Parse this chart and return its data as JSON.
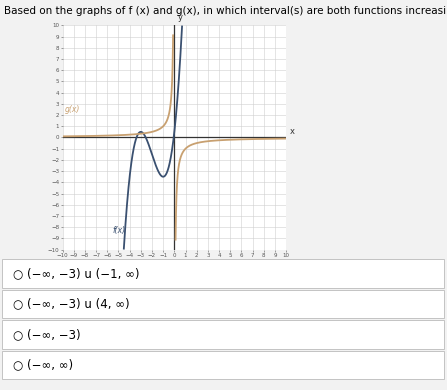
{
  "title": "Based on the graphs of f (x) and g(x), in which interval(s) are both functions increasing?",
  "page_bg": "#f0f0f0",
  "graph_bg": "#ffffff",
  "grid_color": "#d0d0d0",
  "axis_color": "#333333",
  "f_color": "#3a5070",
  "g_color": "#c8a070",
  "xlim": [
    -10,
    10
  ],
  "ylim": [
    -10,
    10
  ],
  "f_label": "f(x)",
  "g_label": "g(x)",
  "options": [
    "○ (−∞, −3) u (−1, ∞)",
    "○ (−∞, −3) u (4, ∞)",
    "○ (−∞, −3)",
    "○ (−∞, ∞)"
  ]
}
